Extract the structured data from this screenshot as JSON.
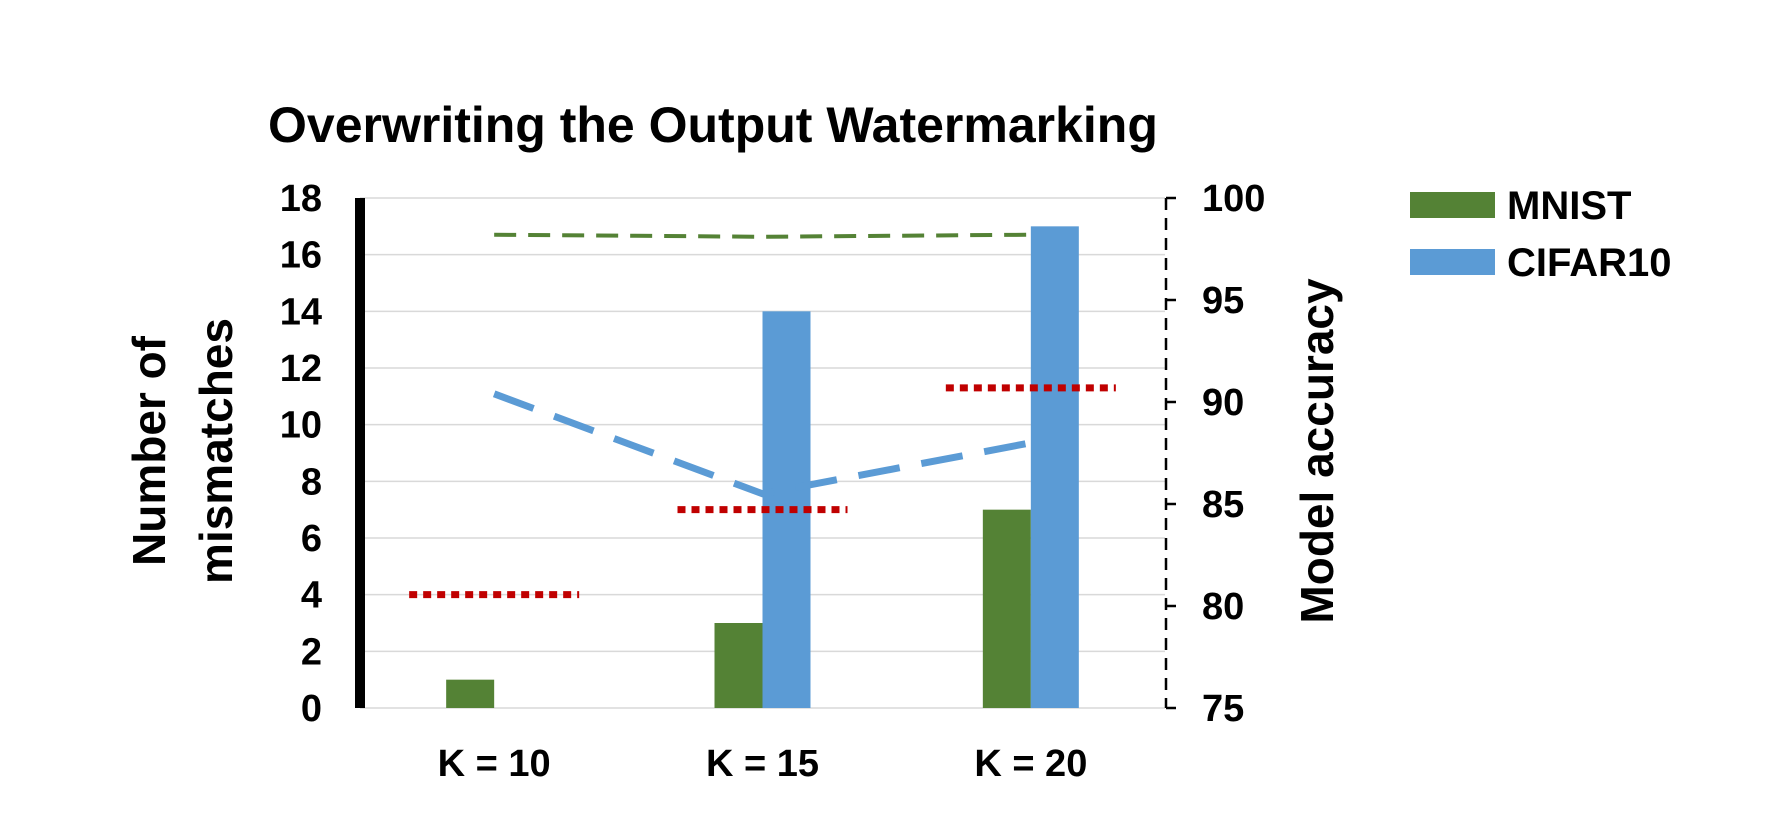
{
  "chart_data": {
    "type": "bar",
    "title": "Overwriting the Output Watermarking",
    "categories": [
      "K = 10",
      "K = 15",
      "K = 20"
    ],
    "ylabel": "Number of mismatches",
    "ylabel_lines": [
      "Number of",
      "mismatches"
    ],
    "y2label": "Model accuracy",
    "ylim": [
      0,
      18
    ],
    "y_ticks": [
      "0",
      "2",
      "4",
      "6",
      "8",
      "10",
      "12",
      "14",
      "16",
      "18"
    ],
    "y2lim": [
      75,
      100
    ],
    "y2_ticks": [
      "75",
      "80",
      "85",
      "90",
      "95",
      "100"
    ],
    "grid": true,
    "legend_position": "top-right",
    "series": [
      {
        "name": "MNIST",
        "values": [
          1,
          3,
          7
        ],
        "color": "#548235"
      },
      {
        "name": "CIFAR10",
        "values": [
          0,
          14,
          17
        ],
        "color": "#5b9bd5"
      }
    ],
    "lines": [
      {
        "axis": "secondary",
        "style": "dashed",
        "color": "#548235",
        "values": [
          98.2,
          98.1,
          98.2
        ]
      },
      {
        "axis": "secondary",
        "style": "dashed",
        "color": "#5b9bd5",
        "values": [
          90.4,
          85.5,
          88.0
        ]
      },
      {
        "axis": "primary",
        "style": "dotted",
        "color": "#c00000",
        "values": [
          4,
          7,
          11.3
        ]
      }
    ]
  }
}
